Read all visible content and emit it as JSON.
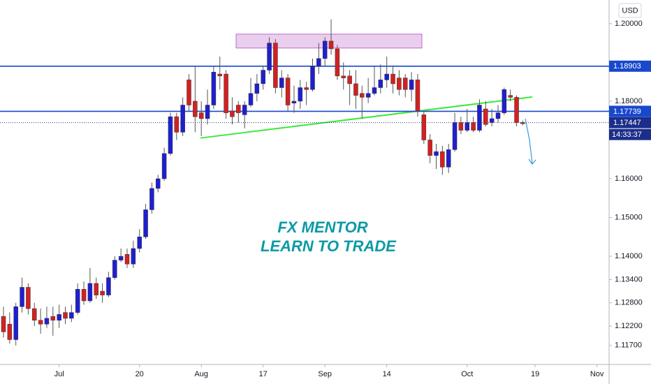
{
  "chart_data": {
    "type": "candlestick",
    "currency": "USD",
    "categories": [
      null,
      null,
      null,
      null,
      null,
      null,
      null,
      null,
      null,
      "Jul",
      null,
      null,
      null,
      null,
      null,
      null,
      null,
      null,
      null,
      null,
      null,
      null,
      "20",
      null,
      null,
      null,
      null,
      null,
      null,
      null,
      null,
      null,
      "Aug",
      null,
      null,
      null,
      null,
      null,
      null,
      null,
      null,
      null,
      "17",
      null,
      null,
      null,
      null,
      null,
      null,
      null,
      null,
      null,
      "Sep",
      null,
      null,
      null,
      null,
      null,
      null,
      null,
      null,
      null,
      "14",
      null,
      null,
      null,
      null,
      null,
      null,
      null,
      null,
      null,
      null,
      null,
      null,
      "Oct",
      null,
      null,
      null,
      null,
      null,
      null,
      null,
      null,
      null,
      null,
      "19",
      null,
      null,
      null,
      null,
      null,
      null,
      null,
      null,
      null,
      "Nov",
      null,
      null
    ],
    "open": [
      1.1245,
      1.1225,
      1.1185,
      1.127,
      1.132,
      1.1265,
      1.1235,
      1.1225,
      1.1245,
      1.1235,
      1.1255,
      1.124,
      1.1255,
      1.1315,
      1.1285,
      1.133,
      1.131,
      1.13,
      1.1345,
      1.139,
      1.1405,
      1.138,
      1.142,
      1.145,
      1.152,
      1.1575,
      1.16,
      1.1665,
      1.176,
      1.172,
      1.1855,
      1.18,
      1.177,
      1.1755,
      1.179,
      1.187,
      1.187,
      1.1775,
      1.179,
      1.1765,
      1.179,
      1.182,
      1.1845,
      1.188,
      1.195,
      1.1835,
      1.186,
      1.1795,
      1.18,
      1.1835,
      1.183,
      1.189,
      1.191,
      1.1955,
      1.1935,
      1.1865,
      1.1865,
      1.1845,
      1.182,
      1.181,
      1.182,
      1.1835,
      1.1855,
      1.187,
      1.186,
      1.186,
      1.183,
      1.1855,
      1.1765,
      1.17,
      1.166,
      1.167,
      1.163,
      1.1675,
      1.1745,
      1.1725,
      1.1745,
      1.1725,
      1.178,
      1.1745,
      1.1755,
      1.177,
      1.1815,
      1.181,
      1.1745,
      null,
      null,
      null,
      null,
      null,
      null,
      null,
      null,
      null,
      null,
      null,
      null,
      null,
      null
    ],
    "high": [
      1.127,
      1.1255,
      1.128,
      1.1345,
      1.133,
      1.128,
      1.1265,
      1.127,
      1.127,
      1.1275,
      1.127,
      1.1275,
      1.133,
      1.1335,
      1.137,
      1.1345,
      1.133,
      1.136,
      1.14,
      1.142,
      1.142,
      1.144,
      1.147,
      1.1535,
      1.159,
      1.161,
      1.168,
      1.177,
      1.177,
      1.181,
      1.187,
      1.189,
      1.18,
      1.183,
      1.189,
      1.1915,
      1.188,
      1.181,
      1.18,
      1.18,
      1.186,
      1.187,
      1.189,
      1.1965,
      1.196,
      1.188,
      1.187,
      1.184,
      1.1855,
      1.185,
      1.191,
      1.195,
      1.1965,
      1.2011,
      1.1945,
      1.19,
      1.188,
      1.188,
      1.184,
      1.186,
      1.189,
      1.1895,
      1.1915,
      1.189,
      1.188,
      1.187,
      1.1875,
      1.187,
      1.1775,
      1.1715,
      1.169,
      1.1685,
      1.169,
      1.177,
      1.176,
      1.178,
      1.176,
      1.1805,
      1.18,
      1.178,
      1.179,
      1.1835,
      1.183,
      1.1815,
      1.175,
      null,
      null,
      null,
      null,
      null,
      null,
      null,
      null,
      null,
      null,
      null,
      null,
      null,
      null
    ],
    "low": [
      1.119,
      1.1175,
      1.117,
      1.1255,
      1.125,
      1.122,
      1.12,
      1.1215,
      1.1195,
      1.1215,
      1.1225,
      1.123,
      1.125,
      1.1275,
      1.128,
      1.129,
      1.128,
      1.1295,
      1.134,
      1.1385,
      1.137,
      1.137,
      1.141,
      1.1445,
      1.151,
      1.1565,
      1.1595,
      1.166,
      1.17,
      1.171,
      1.1775,
      1.172,
      1.171,
      1.174,
      1.178,
      1.183,
      1.1755,
      1.174,
      1.1745,
      1.173,
      1.1785,
      1.18,
      1.183,
      1.187,
      1.182,
      1.181,
      1.1775,
      1.177,
      1.178,
      1.179,
      1.1825,
      1.187,
      1.189,
      1.192,
      1.1855,
      1.183,
      1.179,
      1.178,
      1.1755,
      1.1795,
      1.1815,
      1.182,
      1.1835,
      1.182,
      1.1815,
      1.181,
      1.18,
      1.176,
      1.169,
      1.164,
      1.1625,
      1.161,
      1.1615,
      1.167,
      1.1715,
      1.172,
      1.172,
      1.172,
      1.1735,
      1.1735,
      1.1745,
      1.1765,
      1.18,
      1.1735,
      1.1738,
      null,
      null,
      null,
      null,
      null,
      null,
      null,
      null,
      null,
      null,
      null,
      null,
      null,
      null
    ],
    "close": [
      1.1205,
      1.1185,
      1.127,
      1.132,
      1.1265,
      1.1235,
      1.1225,
      1.124,
      1.1235,
      1.125,
      1.124,
      1.1255,
      1.1315,
      1.1285,
      1.133,
      1.13,
      1.13,
      1.1345,
      1.139,
      1.14,
      1.138,
      1.142,
      1.145,
      1.152,
      1.1575,
      1.16,
      1.1665,
      1.176,
      1.172,
      1.179,
      1.179,
      1.176,
      1.1755,
      1.179,
      1.1875,
      1.1865,
      1.177,
      1.176,
      1.177,
      1.179,
      1.182,
      1.1845,
      1.188,
      1.195,
      1.1835,
      1.186,
      1.179,
      1.18,
      1.1835,
      1.183,
      1.189,
      1.191,
      1.1955,
      1.1935,
      1.1865,
      1.186,
      1.1845,
      1.1815,
      1.181,
      1.182,
      1.1835,
      1.1855,
      1.187,
      1.1845,
      1.183,
      1.183,
      1.1855,
      1.1775,
      1.17,
      1.166,
      1.167,
      1.163,
      1.1675,
      1.1745,
      1.1725,
      1.1745,
      1.1725,
      1.179,
      1.174,
      1.1755,
      1.177,
      1.183,
      1.181,
      1.1745,
      1.1742,
      null,
      null,
      null,
      null,
      null,
      null,
      null,
      null,
      null,
      null,
      null,
      null,
      null,
      null
    ],
    "up_color": "#1f1fd1",
    "down_color": "#d32121",
    "ylim": [
      1.1121,
      1.2061
    ],
    "yticks": [
      {
        "value": 1.2,
        "label": "1.20000"
      },
      {
        "value": 1.18,
        "label": "1.18000"
      },
      {
        "value": 1.16,
        "label": "1.16000"
      },
      {
        "value": 1.15,
        "label": "1.15000"
      },
      {
        "value": 1.14,
        "label": "1.14000"
      },
      {
        "value": 1.134,
        "label": "1.13400"
      },
      {
        "value": 1.128,
        "label": "1.12800"
      },
      {
        "value": 1.122,
        "label": "1.12200"
      },
      {
        "value": 1.117,
        "label": "1.11700"
      }
    ],
    "grid": false,
    "price_lines": [
      1.18903,
      1.17739
    ],
    "price_line_color": "#1848cc",
    "current_price": 1.17447,
    "countdown": "14:33:37",
    "zone": [
      1.1937,
      1.1973
    ],
    "trendline": [
      1.1705,
      1.1811
    ],
    "watermark": [
      "FX MENTOR",
      "LEARN TO TRADE"
    ]
  }
}
